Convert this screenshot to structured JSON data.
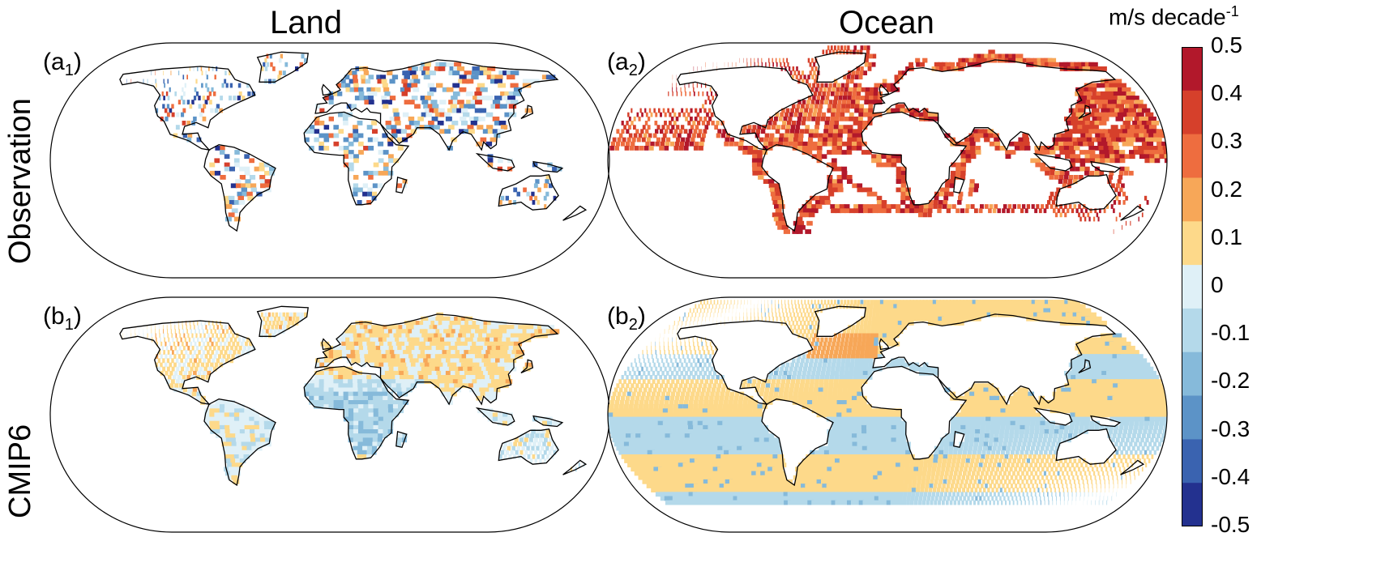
{
  "columns": {
    "land": "Land",
    "ocean": "Ocean"
  },
  "rows": {
    "observation": "Observation",
    "cmip6": "CMIP6"
  },
  "panels": {
    "a1": {
      "label_main": "(a",
      "label_sub": "1",
      "label_end": ")"
    },
    "a2": {
      "label_main": "(a",
      "label_sub": "2",
      "label_end": ")"
    },
    "b1": {
      "label_main": "(b",
      "label_sub": "1",
      "label_end": ")"
    },
    "b2": {
      "label_main": "(b",
      "label_sub": "2",
      "label_end": ")"
    }
  },
  "colorbar": {
    "unit": "m/s decade",
    "unit_sup": "-1",
    "ticks": [
      "0.5",
      "0.4",
      "0.3",
      "0.2",
      "0.1",
      "0",
      "-0.1",
      "-0.2",
      "-0.3",
      "-0.4",
      "-0.5"
    ],
    "colors": [
      "#b2182b",
      "#d6402b",
      "#ee6d3f",
      "#f7a758",
      "#fdd98a",
      "#dff0f7",
      "#b4d9ea",
      "#86bada",
      "#5c93c7",
      "#3a63b0",
      "#23318f"
    ]
  },
  "map_colors": {
    "land_fill": "#ffffff",
    "coast": "#000000",
    "ocean_obs_bg": "#ffffff",
    "ocean_cmip_warm": "#fdd98a",
    "ocean_cmip_cool": "#dff0f7"
  }
}
